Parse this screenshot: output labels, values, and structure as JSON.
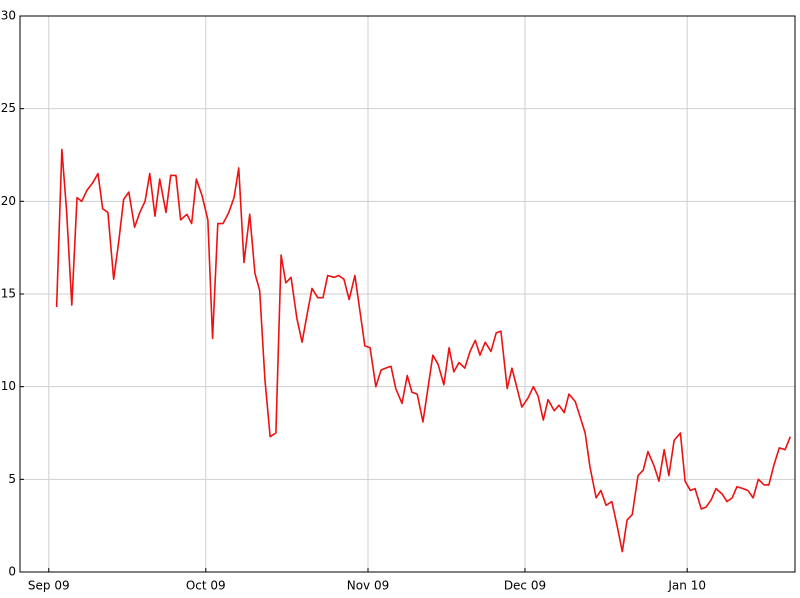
{
  "chart_data": {
    "type": "line",
    "x": [
      1.5,
      2.5,
      3.4,
      4.4,
      5.4,
      6.3,
      7.3,
      8.4,
      9.4,
      10.3,
      11.3,
      12.4,
      13.4,
      14.3,
      15.3,
      16.4,
      17.4,
      18.4,
      19.3,
      20.3,
      21.2,
      22.4,
      23.3,
      24.3,
      25.2,
      26.4,
      27.3,
      28.2,
      29.3,
      30.4,
      31.3,
      32.3,
      33.3,
      34.4,
      35.4,
      36.3,
      37.3,
      38.4,
      39.4,
      40.3,
      41.3,
      42.3,
      43.4,
      44.4,
      45.3,
      46.3,
      47.4,
      48.4,
      49.3,
      50.3,
      51.4,
      52.4,
      53.3,
      54.5,
      55.4,
      56.4,
      57.4,
      58.5,
      59.5,
      60.4,
      61.4,
      62.5,
      63.5,
      64.4,
      65.4,
      66.3,
      67.5,
      68.5,
      69.4,
      70.4,
      71.5,
      72.5,
      73.4,
      74.4,
      75.5,
      76.5,
      77.4,
      78.4,
      79.5,
      80.5,
      81.5,
      82.4,
      83.4,
      84.5,
      85.5,
      86.4,
      87.6,
      88.5,
      89.5,
      90.4,
      91.6,
      92.6,
      93.5,
      94.5,
      95.4,
      96.6,
      97.5,
      98.5,
      99.4,
      100.6,
      101.5,
      102.5,
      103.4,
      104.6,
      105.5,
      106.5,
      107.6,
      108.6,
      109.6,
      110.5,
      111.5,
      112.6,
      113.6,
      114.5,
      115.7,
      116.6,
      117.6,
      118.5,
      119.5,
      120.7,
      121.6,
      122.6,
      123.5,
      124.7,
      125.6,
      126.6,
      127.5,
      128.7,
      129.6,
      130.6,
      131.5,
      132.7,
      133.6,
      134.6,
      135.6,
      136.7,
      137.6,
      138.6,
      139.6,
      140.7,
      141.7
    ],
    "series": [
      {
        "color": "#ee1111",
        "values": [
          14.3,
          22.8,
          19.5,
          14.4,
          20.2,
          20.0,
          20.6,
          21.0,
          21.5,
          19.6,
          19.4,
          15.8,
          17.9,
          20.1,
          20.5,
          18.6,
          19.4,
          20.0,
          21.5,
          19.2,
          21.2,
          19.4,
          21.4,
          21.4,
          19.0,
          19.3,
          18.8,
          21.2,
          20.3,
          19.0,
          12.6,
          18.8,
          18.8,
          19.4,
          20.2,
          21.8,
          16.7,
          19.3,
          16.1,
          15.2,
          10.4,
          7.3,
          7.5,
          17.1,
          15.6,
          15.9,
          13.7,
          12.4,
          13.8,
          15.3,
          14.8,
          14.8,
          16.0,
          15.9,
          16.0,
          15.8,
          14.7,
          16.0,
          14.0,
          12.2,
          12.1,
          10.0,
          10.9,
          11.0,
          11.1,
          9.9,
          9.1,
          10.6,
          9.7,
          9.6,
          8.1,
          10.0,
          11.7,
          11.2,
          10.1,
          12.1,
          10.8,
          11.3,
          11.0,
          11.9,
          12.5,
          11.7,
          12.4,
          11.9,
          12.9,
          13.0,
          9.9,
          11.0,
          9.9,
          8.9,
          9.4,
          10.0,
          9.5,
          8.2,
          9.3,
          8.7,
          9.0,
          8.6,
          9.6,
          9.2,
          8.4,
          7.5,
          5.7,
          4.0,
          4.4,
          3.6,
          3.8,
          2.5,
          1.1,
          2.8,
          3.1,
          5.2,
          5.5,
          6.5,
          5.7,
          4.9,
          6.6,
          5.2,
          7.1,
          7.5,
          4.9,
          4.4,
          4.5,
          3.4,
          3.5,
          3.9,
          4.5,
          4.2,
          3.8,
          4.0,
          4.6,
          4.5,
          4.4,
          4.0,
          5.0,
          4.7,
          4.7,
          5.8,
          6.7,
          6.6,
          7.3
        ]
      }
    ],
    "xlim": [
      -5.5,
      142.6
    ],
    "xticks": [
      {
        "value": 0,
        "label": "Sep 09"
      },
      {
        "value": 30,
        "label": "Oct 09"
      },
      {
        "value": 61,
        "label": "Nov 09"
      },
      {
        "value": 91,
        "label": "Dec 09"
      },
      {
        "value": 122,
        "label": "Jan 10"
      }
    ],
    "ylim": [
      0,
      30
    ],
    "yticks": [
      0,
      5,
      10,
      15,
      20,
      25,
      30
    ],
    "grid": true
  }
}
